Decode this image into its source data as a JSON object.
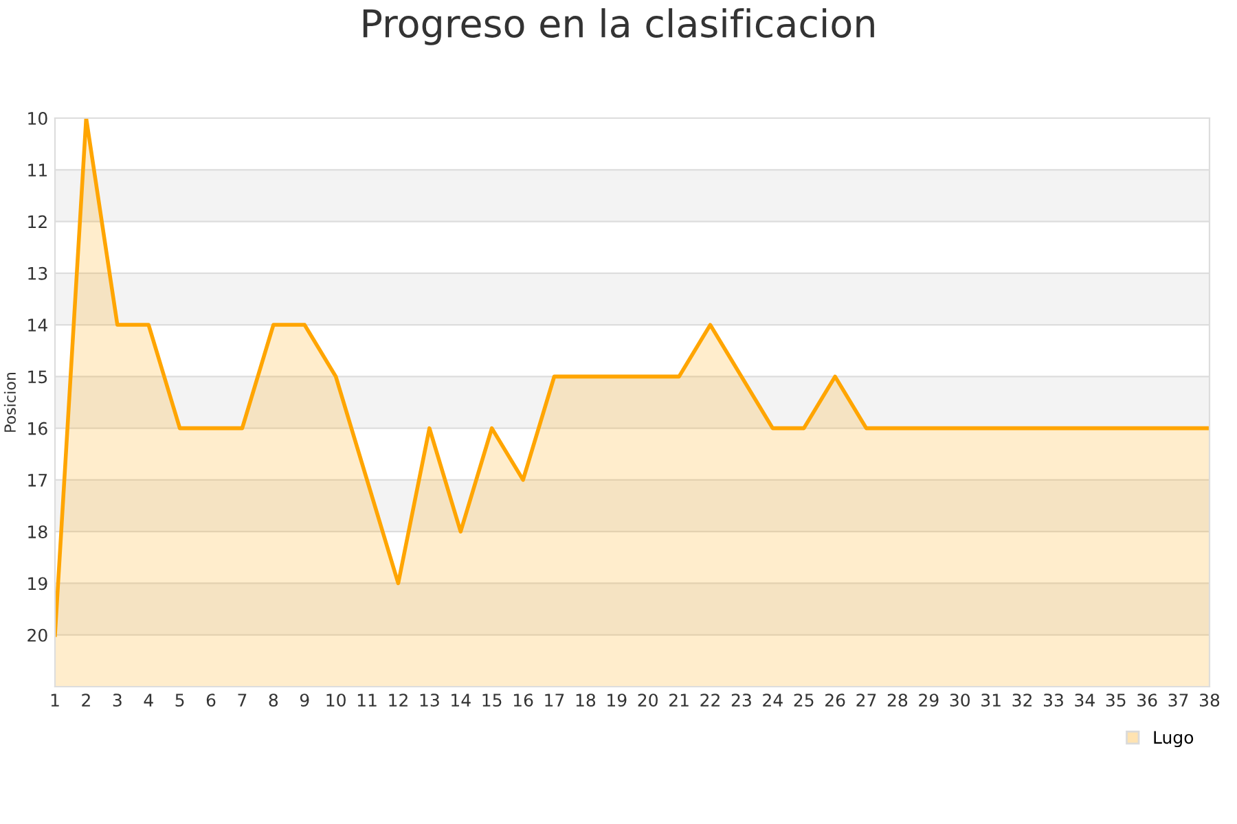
{
  "chart_data": {
    "type": "area",
    "title": "Progreso en la clasificacion",
    "ylabel": "Posicion",
    "x": [
      1,
      2,
      3,
      4,
      5,
      6,
      7,
      8,
      9,
      10,
      11,
      12,
      13,
      14,
      15,
      16,
      17,
      18,
      19,
      20,
      21,
      22,
      23,
      24,
      25,
      26,
      27,
      28,
      29,
      30,
      31,
      32,
      33,
      34,
      35,
      36,
      37,
      38
    ],
    "series": [
      {
        "name": "Lugo",
        "color": "#ffa500",
        "values": [
          20,
          10,
          14,
          14,
          16,
          16,
          16,
          14,
          14,
          15,
          17,
          19,
          16,
          18,
          16,
          17,
          15,
          15,
          15,
          15,
          15,
          14,
          15,
          16,
          16,
          15,
          16,
          16,
          16,
          16,
          16,
          16,
          16,
          16,
          16,
          16,
          16,
          16
        ]
      }
    ],
    "xlim": [
      1,
      38
    ],
    "xticks": [
      1,
      2,
      3,
      4,
      5,
      6,
      7,
      8,
      9,
      10,
      11,
      12,
      13,
      14,
      15,
      16,
      17,
      18,
      19,
      20,
      21,
      22,
      23,
      24,
      25,
      26,
      27,
      28,
      29,
      30,
      31,
      32,
      33,
      34,
      35,
      36,
      37,
      38
    ],
    "ylim": [
      21,
      10
    ],
    "yticks": [
      10,
      11,
      12,
      13,
      14,
      15,
      16,
      17,
      18,
      19,
      20
    ],
    "grid": "y",
    "legend": "bottom right"
  }
}
